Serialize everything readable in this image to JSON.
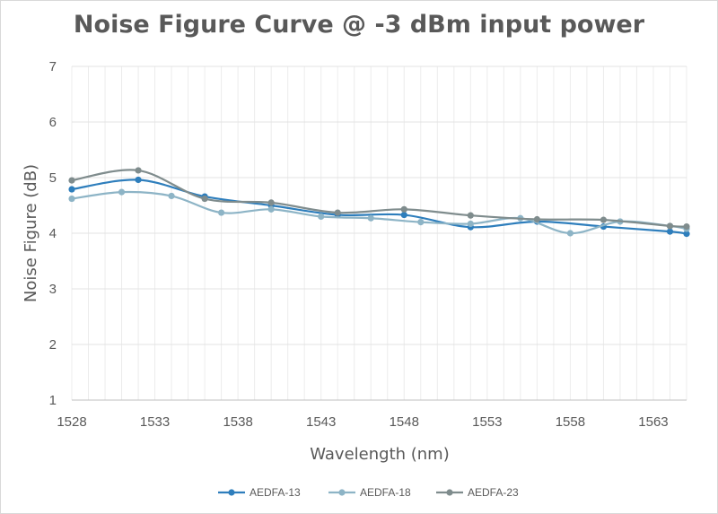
{
  "chart_data": {
    "type": "line",
    "title": "Noise Figure Curve @ -3 dBm input power",
    "xlabel": "Wavelength (nm)",
    "ylabel": "Noise Figure (dB)",
    "xlim": [
      1528,
      1565
    ],
    "ylim": [
      1,
      7
    ],
    "x_ticks": [
      1528,
      1533,
      1538,
      1543,
      1548,
      1553,
      1558,
      1563
    ],
    "y_ticks": [
      1,
      2,
      3,
      4,
      5,
      6,
      7
    ],
    "grid": "vertical minor and horizontal major gridlines",
    "legend_position": "bottom",
    "series": [
      {
        "name": "AEDFA-13",
        "color": "#2e7ebc",
        "points": [
          [
            1528,
            4.79
          ],
          [
            1532,
            4.96
          ],
          [
            1536,
            4.66
          ],
          [
            1540,
            4.5
          ],
          [
            1544,
            4.33
          ],
          [
            1548,
            4.33
          ],
          [
            1552,
            4.11
          ],
          [
            1556,
            4.21
          ],
          [
            1560,
            4.12
          ],
          [
            1564,
            4.03
          ],
          [
            1565,
            3.99
          ]
        ]
      },
      {
        "name": "AEDFA-18",
        "color": "#8db4c6",
        "points": [
          [
            1528,
            4.62
          ],
          [
            1531,
            4.74
          ],
          [
            1534,
            4.67
          ],
          [
            1537,
            4.37
          ],
          [
            1540,
            4.43
          ],
          [
            1543,
            4.3
          ],
          [
            1546,
            4.27
          ],
          [
            1549,
            4.2
          ],
          [
            1552,
            4.17
          ],
          [
            1555,
            4.27
          ],
          [
            1558,
            4.0
          ],
          [
            1561,
            4.21
          ],
          [
            1564,
            4.13
          ],
          [
            1565,
            4.08
          ]
        ]
      },
      {
        "name": "AEDFA-23",
        "color": "#7f8c8d",
        "points": [
          [
            1528,
            4.95
          ],
          [
            1532,
            5.13
          ],
          [
            1536,
            4.62
          ],
          [
            1540,
            4.55
          ],
          [
            1544,
            4.37
          ],
          [
            1548,
            4.43
          ],
          [
            1552,
            4.32
          ],
          [
            1556,
            4.25
          ],
          [
            1560,
            4.24
          ],
          [
            1564,
            4.13
          ],
          [
            1565,
            4.12
          ]
        ]
      }
    ]
  }
}
